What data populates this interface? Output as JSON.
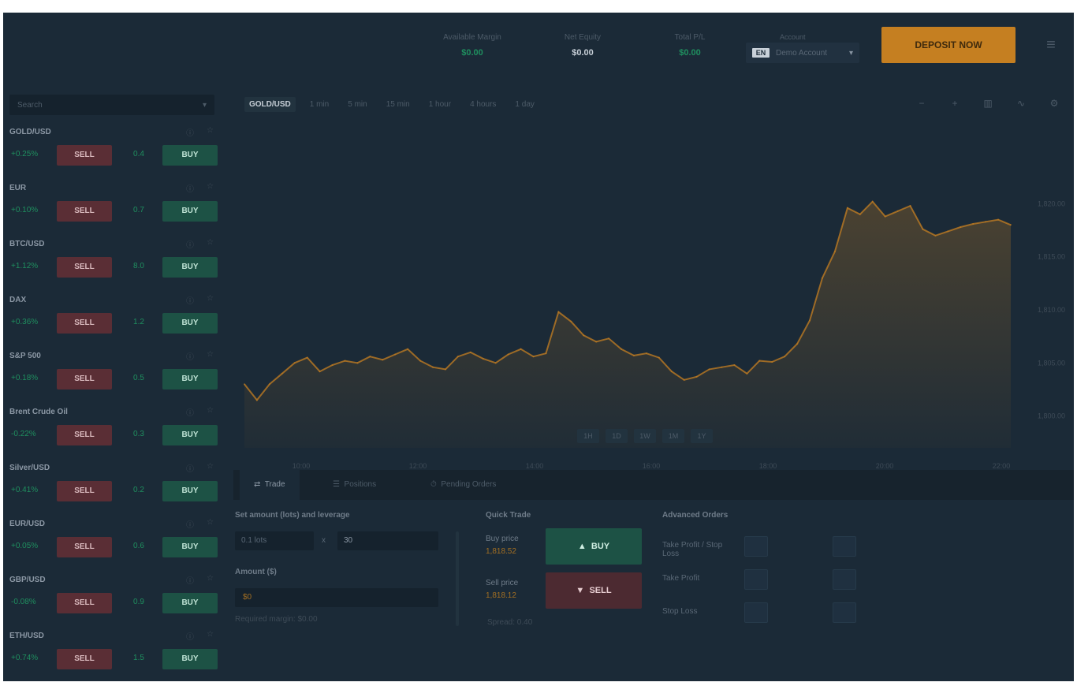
{
  "header": {
    "stats": [
      {
        "label": "Available Margin",
        "value": "$0.00",
        "tone": "green"
      },
      {
        "label": "Net Equity",
        "value": "$0.00",
        "tone": "white"
      },
      {
        "label": "Total P/L",
        "value": "$0.00",
        "tone": "green"
      }
    ],
    "account": {
      "label": "Account",
      "flag": "EN",
      "name": "Demo Account",
      "caret": "▾"
    },
    "deposit_label": "DEPOSIT NOW",
    "menu_icon": "hamburger-icon"
  },
  "sidebar": {
    "search_placeholder": "Search",
    "instruments": [
      {
        "name": "GOLD/USD",
        "change": "+0.25%",
        "sell": "SELL",
        "spread": "0.4",
        "buy": "BUY"
      },
      {
        "name": "EUR",
        "change": "+0.10%",
        "sell": "SELL",
        "spread": "0.7",
        "buy": "BUY"
      },
      {
        "name": "BTC/USD",
        "change": "+1.12%",
        "sell": "SELL",
        "spread": "8.0",
        "buy": "BUY"
      },
      {
        "name": "DAX",
        "change": "+0.36%",
        "sell": "SELL",
        "spread": "1.2",
        "buy": "BUY"
      },
      {
        "name": "S&P 500",
        "change": "+0.18%",
        "sell": "SELL",
        "spread": "0.5",
        "buy": "BUY"
      },
      {
        "name": "Brent Crude Oil",
        "change": "-0.22%",
        "sell": "SELL",
        "spread": "0.3",
        "buy": "BUY"
      },
      {
        "name": "Silver/USD",
        "change": "+0.41%",
        "sell": "SELL",
        "spread": "0.2",
        "buy": "BUY"
      },
      {
        "name": "EUR/USD",
        "change": "+0.05%",
        "sell": "SELL",
        "spread": "0.6",
        "buy": "BUY"
      },
      {
        "name": "GBP/USD",
        "change": "-0.08%",
        "sell": "SELL",
        "spread": "0.9",
        "buy": "BUY"
      },
      {
        "name": "ETH/USD",
        "change": "+0.74%",
        "sell": "SELL",
        "spread": "1.5",
        "buy": "BUY"
      }
    ]
  },
  "chart": {
    "timeframes": [
      "GOLD/USD",
      "1 min",
      "5 min",
      "15 min",
      "1 hour",
      "4 hours",
      "1 day"
    ],
    "tools": [
      "minus-icon",
      "plus-icon",
      "candles-icon",
      "line-icon",
      "settings-icon"
    ],
    "zoom_buttons": [
      "1H",
      "1D",
      "1W",
      "1M",
      "1Y"
    ],
    "line_color": "#c57f21"
  },
  "chart_data": {
    "type": "area",
    "title": "",
    "x_ticks": [
      "10:00",
      "12:00",
      "14:00",
      "16:00",
      "18:00",
      "20:00",
      "22:00"
    ],
    "y_ticks": [
      "1,820.00",
      "1,815.00",
      "1,810.00",
      "1,805.00",
      "1,800.00"
    ],
    "ylim": [
      1797,
      1823
    ],
    "values": [
      1803.0,
      1801.5,
      1803.0,
      1804.0,
      1805.0,
      1805.5,
      1804.2,
      1804.8,
      1805.2,
      1805.0,
      1805.6,
      1805.3,
      1805.8,
      1806.3,
      1805.2,
      1804.6,
      1804.4,
      1805.6,
      1806.0,
      1805.4,
      1805.0,
      1805.8,
      1806.3,
      1805.6,
      1805.9,
      1809.8,
      1808.9,
      1807.6,
      1807.0,
      1807.3,
      1806.3,
      1805.7,
      1805.9,
      1805.5,
      1804.2,
      1803.4,
      1803.7,
      1804.4,
      1804.6,
      1804.8,
      1804.0,
      1805.2,
      1805.1,
      1805.6,
      1806.8,
      1809.0,
      1813.0,
      1815.5,
      1819.6,
      1819.0,
      1820.2,
      1818.8,
      1819.3,
      1819.8,
      1817.6,
      1817.0,
      1817.4,
      1817.8,
      1818.1,
      1818.3,
      1818.5,
      1818.0
    ]
  },
  "tabs": [
    {
      "label": "Trade",
      "icon": "trade-icon"
    },
    {
      "label": "Positions",
      "icon": "positions-icon"
    },
    {
      "label": "Pending Orders",
      "icon": "orders-icon"
    }
  ],
  "order": {
    "title": "Set amount (lots) and leverage",
    "lots_value": "0.1 lots",
    "multiplier": "x",
    "leverage_value": "30",
    "amount_title": "Amount ($)",
    "amount_value": "$0",
    "margin_note": "Required margin: $0.00"
  },
  "quick_trade": {
    "title": "Quick Trade",
    "buy": {
      "name": "Buy price",
      "value": "1,818.52",
      "label": "BUY"
    },
    "sell": {
      "name": "Sell price",
      "value": "1,818.12",
      "label": "SELL"
    },
    "note": "Spread: 0.40"
  },
  "advanced": {
    "title": "Advanced Orders",
    "rows": [
      "Take Profit / Stop Loss",
      "Take Profit",
      "Stop Loss"
    ]
  }
}
